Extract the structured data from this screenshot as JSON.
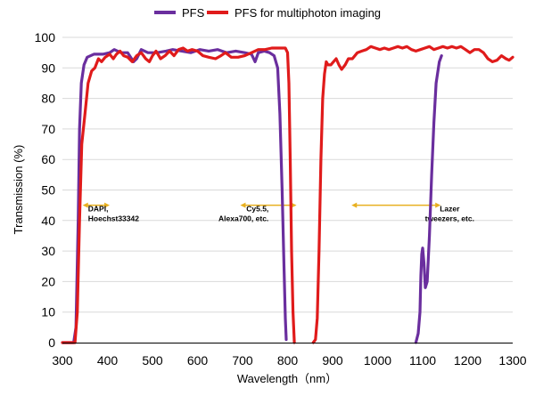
{
  "chart_data": {
    "type": "line",
    "title": "",
    "xlabel": "Wavelength（nm）",
    "ylabel": "Transmission (%)",
    "xlim": [
      300,
      1300
    ],
    "ylim": [
      0,
      100
    ],
    "x_ticks": [
      "300",
      "400",
      "500",
      "600",
      "700",
      "800",
      "900",
      "1000",
      "1100",
      "1200",
      "1300"
    ],
    "y_ticks": [
      "0",
      "10",
      "20",
      "30",
      "40",
      "50",
      "60",
      "70",
      "80",
      "90",
      "100"
    ],
    "grid": "horizontal",
    "legend_position": "top",
    "series": [
      {
        "name": "PFS",
        "color": "#6a2e9e",
        "segments": [
          [
            [
              300,
              0
            ],
            [
              325,
              0
            ],
            [
              330,
              5
            ],
            [
              335,
              40
            ],
            [
              338,
              70
            ],
            [
              342,
              85
            ],
            [
              348,
              91
            ],
            [
              355,
              93.5
            ],
            [
              370,
              94.5
            ],
            [
              390,
              94.5
            ],
            [
              405,
              95
            ],
            [
              415,
              96
            ],
            [
              430,
              95
            ],
            [
              445,
              95
            ],
            [
              458,
              92
            ],
            [
              465,
              93
            ],
            [
              475,
              96
            ],
            [
              490,
              95
            ],
            [
              510,
              95
            ],
            [
              530,
              95.5
            ],
            [
              545,
              96
            ],
            [
              565,
              95.5
            ],
            [
              585,
              95
            ],
            [
              605,
              96
            ],
            [
              625,
              95.5
            ],
            [
              645,
              96
            ],
            [
              665,
              95
            ],
            [
              685,
              95.5
            ],
            [
              705,
              95
            ],
            [
              720,
              94.5
            ],
            [
              728,
              92
            ],
            [
              735,
              95
            ],
            [
              748,
              95.5
            ],
            [
              760,
              95
            ],
            [
              770,
              94
            ],
            [
              778,
              90
            ],
            [
              783,
              75
            ],
            [
              788,
              50
            ],
            [
              792,
              25
            ],
            [
              795,
              8
            ],
            [
              797,
              1
            ]
          ],
          [
            [
              1085,
              0
            ],
            [
              1090,
              3
            ],
            [
              1094,
              10
            ],
            [
              1096,
              22
            ],
            [
              1098,
              29
            ],
            [
              1100,
              31
            ],
            [
              1103,
              26
            ],
            [
              1106,
              18
            ],
            [
              1110,
              20
            ],
            [
              1115,
              35
            ],
            [
              1120,
              55
            ],
            [
              1125,
              72
            ],
            [
              1130,
              85
            ],
            [
              1137,
              92
            ],
            [
              1142,
              94
            ]
          ]
        ]
      },
      {
        "name": "PFS for multiphoton imaging",
        "color": "#e01b1b",
        "segments": [
          [
            [
              300,
              0
            ],
            [
              328,
              0
            ],
            [
              333,
              10
            ],
            [
              338,
              40
            ],
            [
              343,
              65
            ],
            [
              350,
              75
            ],
            [
              357,
              85
            ],
            [
              365,
              89
            ],
            [
              372,
              90
            ],
            [
              380,
              93
            ],
            [
              387,
              92
            ],
            [
              395,
              93.5
            ],
            [
              405,
              94.5
            ],
            [
              413,
              93
            ],
            [
              420,
              94.5
            ],
            [
              428,
              95.5
            ],
            [
              436,
              94
            ],
            [
              445,
              93.5
            ],
            [
              455,
              92
            ],
            [
              465,
              94
            ],
            [
              475,
              95
            ],
            [
              485,
              93
            ],
            [
              493,
              92
            ],
            [
              500,
              94
            ],
            [
              508,
              95.5
            ],
            [
              518,
              93
            ],
            [
              528,
              94
            ],
            [
              538,
              95.5
            ],
            [
              548,
              94
            ],
            [
              558,
              96
            ],
            [
              568,
              96.5
            ],
            [
              578,
              95.5
            ],
            [
              588,
              96
            ],
            [
              600,
              95.5
            ],
            [
              612,
              94
            ],
            [
              625,
              93.5
            ],
            [
              640,
              93
            ],
            [
              652,
              94
            ],
            [
              662,
              95
            ],
            [
              675,
              93.5
            ],
            [
              690,
              93.5
            ],
            [
              705,
              94
            ],
            [
              720,
              95
            ],
            [
              735,
              96
            ],
            [
              750,
              96
            ],
            [
              765,
              96.5
            ],
            [
              780,
              96.5
            ],
            [
              795,
              96.5
            ],
            [
              800,
              95
            ],
            [
              803,
              85
            ],
            [
              806,
              60
            ],
            [
              809,
              30
            ],
            [
              812,
              10
            ],
            [
              815,
              0
            ]
          ],
          [
            [
              857,
              0
            ],
            [
              862,
              1
            ],
            [
              866,
              8
            ],
            [
              870,
              30
            ],
            [
              874,
              60
            ],
            [
              878,
              80
            ],
            [
              882,
              88
            ],
            [
              886,
              92
            ],
            [
              890,
              91
            ],
            [
              896,
              91
            ],
            [
              902,
              92
            ],
            [
              908,
              93
            ],
            [
              914,
              91
            ],
            [
              920,
              89.5
            ],
            [
              928,
              91
            ],
            [
              935,
              93
            ],
            [
              944,
              93
            ],
            [
              955,
              95
            ],
            [
              965,
              95.5
            ],
            [
              975,
              96
            ],
            [
              985,
              97
            ],
            [
              995,
              96.5
            ],
            [
              1005,
              96
            ],
            [
              1015,
              96.5
            ],
            [
              1025,
              96
            ],
            [
              1035,
              96.5
            ],
            [
              1045,
              97
            ],
            [
              1055,
              96.5
            ],
            [
              1065,
              97
            ],
            [
              1075,
              96
            ],
            [
              1085,
              95.5
            ],
            [
              1095,
              96
            ],
            [
              1105,
              96.5
            ],
            [
              1115,
              97
            ],
            [
              1125,
              96
            ],
            [
              1135,
              96.5
            ],
            [
              1145,
              97
            ],
            [
              1155,
              96.5
            ],
            [
              1165,
              97
            ],
            [
              1175,
              96.5
            ],
            [
              1185,
              97
            ],
            [
              1195,
              96
            ],
            [
              1205,
              95
            ],
            [
              1215,
              96
            ],
            [
              1225,
              96
            ],
            [
              1235,
              95
            ],
            [
              1245,
              93
            ],
            [
              1255,
              92
            ],
            [
              1265,
              92.5
            ],
            [
              1275,
              94
            ],
            [
              1285,
              93
            ],
            [
              1292,
              92.5
            ],
            [
              1300,
              93.5
            ]
          ]
        ]
      }
    ],
    "annotations": [
      {
        "text": [
          "DAPI,",
          "Hoechst33342"
        ],
        "arrow_x": [
          345,
          405
        ],
        "arrow_y": 45,
        "text_x": 357,
        "text_y": 43
      },
      {
        "text": [
          "Cy5.5,",
          "Alexa700, etc."
        ],
        "arrow_x": [
          695,
          820
        ],
        "arrow_y": 45,
        "text_x": 758,
        "text_y": 43,
        "text_anchor": "end"
      },
      {
        "text": [
          "Lazer",
          "tweezers, etc."
        ],
        "arrow_x": [
          942,
          1140
        ],
        "arrow_y": 45,
        "text_x": 1160,
        "text_y": 43,
        "text_anchor": "middle"
      }
    ],
    "arrow_color": "#e8b020"
  }
}
